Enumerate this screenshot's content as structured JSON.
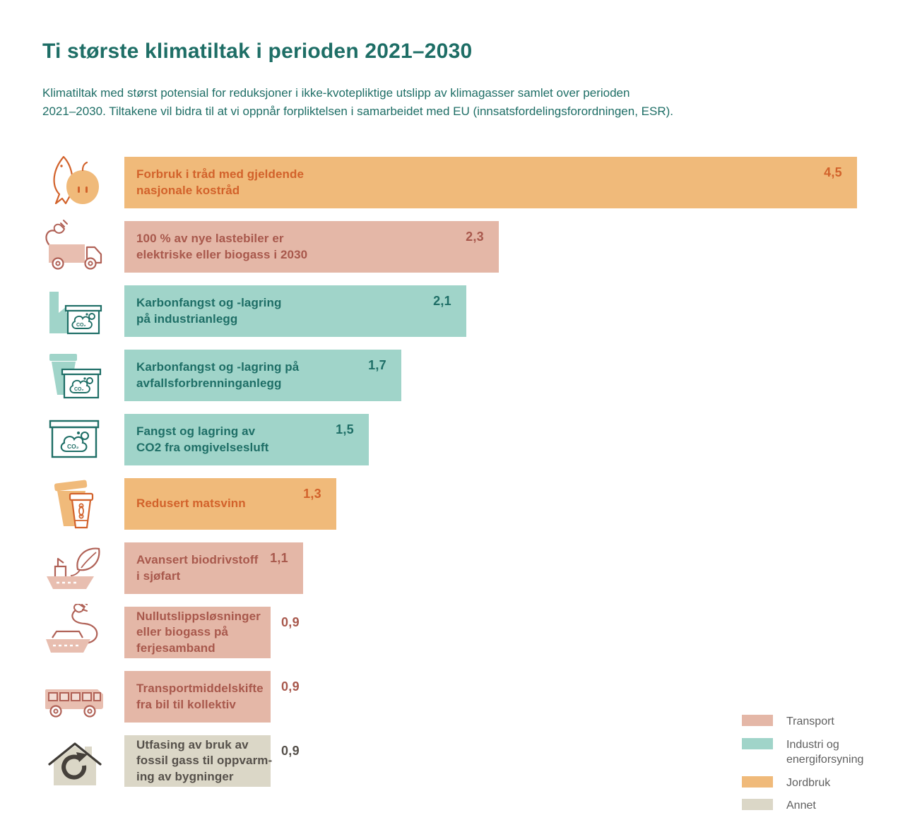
{
  "header": {
    "title": "Ti største klimatiltak i perioden 2021–2030",
    "subtitle_lines": [
      "Klimatiltak med størst potensial for reduksjoner i ikke-kvotepliktige utslipp av klimagasser samlet over perioden",
      "2021–2030. Tiltakene vil bidra til at vi oppnår forpliktelsen i samarbeidet med EU (innsatsfordelingsforordningen, ESR)."
    ]
  },
  "colors": {
    "title_text": "#1e6e66",
    "transport_bar": "#e4b7a7",
    "transport_text": "#a8584c",
    "industri_bar": "#a0d4c9",
    "industri_text": "#1e6e66",
    "jordbruk_bar": "#f0ba7a",
    "jordbruk_text": "#d2622b",
    "annet_bar": "#dbd7c7",
    "annet_text": "#55504a",
    "legend_label_text": "#5f5f5f"
  },
  "chart_data": {
    "type": "bar",
    "orientation": "horizontal",
    "title": "Ti største klimatiltak i perioden 2021–2030",
    "xlim": [
      0,
      4.7
    ],
    "grid": false,
    "legend_position": "bottom-right",
    "categories": [
      "Forbruk i tråd med gjeldende nasjonale kostråd",
      "100 % av nye lastebiler er elektriske eller biogass i 2030",
      "Karbonfangst og -lagring på industrianlegg",
      "Karbonfangst og -lagring på avfallsforbrenninganlegg",
      "Fangst og lagring av CO2 fra omgivelsesluft",
      "Redusert matsvinn",
      "Avansert biodrivstoff i sjøfart",
      "Nullutslippsløsninger eller biogass på ferjesamband",
      "Transportmiddelskifte fra bil til kollektiv",
      "Utfasing av bruk av fossil gass til oppvarming av bygninger"
    ],
    "values": [
      4.5,
      2.3,
      2.1,
      1.7,
      1.5,
      1.3,
      1.1,
      0.9,
      0.9,
      0.9
    ],
    "sector_colors": {
      "Transport": {
        "bar": "#e4b7a7",
        "text": "#a8584c"
      },
      "Industri og energiforsyning": {
        "bar": "#a0d4c9",
        "text": "#1e6e66"
      },
      "Jordbruk": {
        "bar": "#f0ba7a",
        "text": "#d2622b"
      },
      "Annet": {
        "bar": "#dbd7c7",
        "text": "#55504a"
      }
    },
    "bars": [
      {
        "label_lines": [
          "Forbruk i tråd med gjeldende",
          "nasjonale kostråd"
        ],
        "value": 4.5,
        "value_label": "4,5",
        "category": "Jordbruk",
        "icon": "fish-and-apple-icon"
      },
      {
        "label_lines": [
          "100 % av nye lastebiler er",
          "elektriske eller biogass i 2030"
        ],
        "value": 2.3,
        "value_label": "2,3",
        "category": "Transport",
        "icon": "electric-truck-icon"
      },
      {
        "label_lines": [
          "Karbonfangst og -lagring",
          "på industrianlegg"
        ],
        "value": 2.1,
        "value_label": "2,1",
        "category": "Industri og energiforsyning",
        "icon": "factory-carbon-capture-icon"
      },
      {
        "label_lines": [
          "Karbonfangst og -lagring på",
          "avfallsforbrenninganlegg"
        ],
        "value": 1.7,
        "value_label": "1,7",
        "category": "Industri og energiforsyning",
        "icon": "waste-incineration-capture-icon"
      },
      {
        "label_lines": [
          "Fangst og lagring av",
          "CO2 fra omgivelsesluft"
        ],
        "value": 1.5,
        "value_label": "1,5",
        "category": "Industri og energiforsyning",
        "icon": "direct-air-capture-icon"
      },
      {
        "label_lines": [
          "Redusert matsvinn"
        ],
        "value": 1.3,
        "value_label": "1,3",
        "category": "Jordbruk",
        "icon": "food-waste-cup-icon"
      },
      {
        "label_lines": [
          "Avansert biodrivstoff",
          "i sjøfart"
        ],
        "value": 1.1,
        "value_label": "1,1",
        "category": "Transport",
        "icon": "ship-leaf-icon"
      },
      {
        "label_lines": [
          "Nullutslippsløsninger",
          "eller biogass på",
          "ferjesamband"
        ],
        "value": 0.9,
        "value_label": "0,9",
        "category": "Transport",
        "icon": "electric-ferry-icon"
      },
      {
        "label_lines": [
          "Transportmiddelskifte",
          "fra bil til kollektiv"
        ],
        "value": 0.9,
        "value_label": "0,9",
        "category": "Transport",
        "icon": "bus-icon"
      },
      {
        "label_lines": [
          "Utfasing av bruk av",
          "fossil gass til oppvarm-",
          "ing av bygninger"
        ],
        "value": 0.9,
        "value_label": "0,9",
        "category": "Annet",
        "icon": "house-recycling-icon"
      }
    ]
  },
  "legend": {
    "items": [
      {
        "label_lines": [
          "Transport"
        ],
        "color": "#e4b7a7"
      },
      {
        "label_lines": [
          "Industri og",
          "energiforsyning"
        ],
        "color": "#a0d4c9"
      },
      {
        "label_lines": [
          "Jordbruk"
        ],
        "color": "#f0ba7a"
      },
      {
        "label_lines": [
          "Annet"
        ],
        "color": "#dbd7c7"
      }
    ]
  }
}
